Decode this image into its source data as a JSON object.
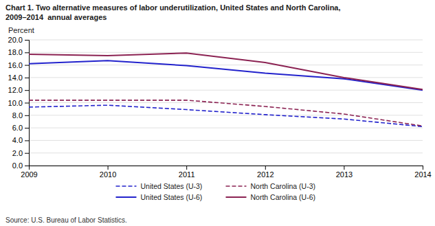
{
  "chart_data": {
    "type": "line",
    "title": "Chart 1. Two alternative measures of labor underutilization, United States and North Carolina,\n2009–2014  annual averages",
    "y_label": "Percent",
    "source": "Source: U.S. Bureau of Labor Statistics.",
    "x": [
      2009,
      2010,
      2011,
      2012,
      2013,
      2014
    ],
    "series": [
      {
        "name": "United States (U-3)",
        "color": "#2222CC",
        "line_style": "dashed",
        "values": [
          9.3,
          9.6,
          8.9,
          8.1,
          7.4,
          6.2
        ]
      },
      {
        "name": "North Carolina (U-3)",
        "color": "#8B2252",
        "line_style": "dashed",
        "values": [
          10.4,
          10.4,
          10.4,
          9.4,
          8.2,
          6.3
        ]
      },
      {
        "name": "United States (U-6)",
        "color": "#2222CC",
        "line_style": "solid",
        "values": [
          16.2,
          16.7,
          15.9,
          14.7,
          13.8,
          12.0
        ]
      },
      {
        "name": "North Carolina (U-6)",
        "color": "#8B2252",
        "line_style": "solid",
        "values": [
          17.7,
          17.5,
          17.9,
          16.4,
          14.0,
          12.1
        ]
      }
    ],
    "xlim": [
      2009,
      2014
    ],
    "xticks": [
      2009,
      2010,
      2011,
      2012,
      2013,
      2014
    ],
    "ylim": [
      0.0,
      20.0
    ],
    "yticks": [
      {
        "value": 0.0,
        "label": "0.0"
      },
      {
        "value": 2.0,
        "label": "2.0"
      },
      {
        "value": 4.0,
        "label": "4.0"
      },
      {
        "value": 6.0,
        "label": "6.0"
      },
      {
        "value": 8.0,
        "label": "8.0"
      },
      {
        "value": 10.0,
        "label": "10.0"
      },
      {
        "value": 12.0,
        "label": "12.0"
      },
      {
        "value": 14.0,
        "label": "14.0"
      },
      {
        "value": 16.0,
        "label": "16.0"
      },
      {
        "value": 18.0,
        "label": "18.0"
      },
      {
        "value": 20.0,
        "label": "20.0"
      }
    ],
    "grid": true,
    "legend": "bottom"
  }
}
